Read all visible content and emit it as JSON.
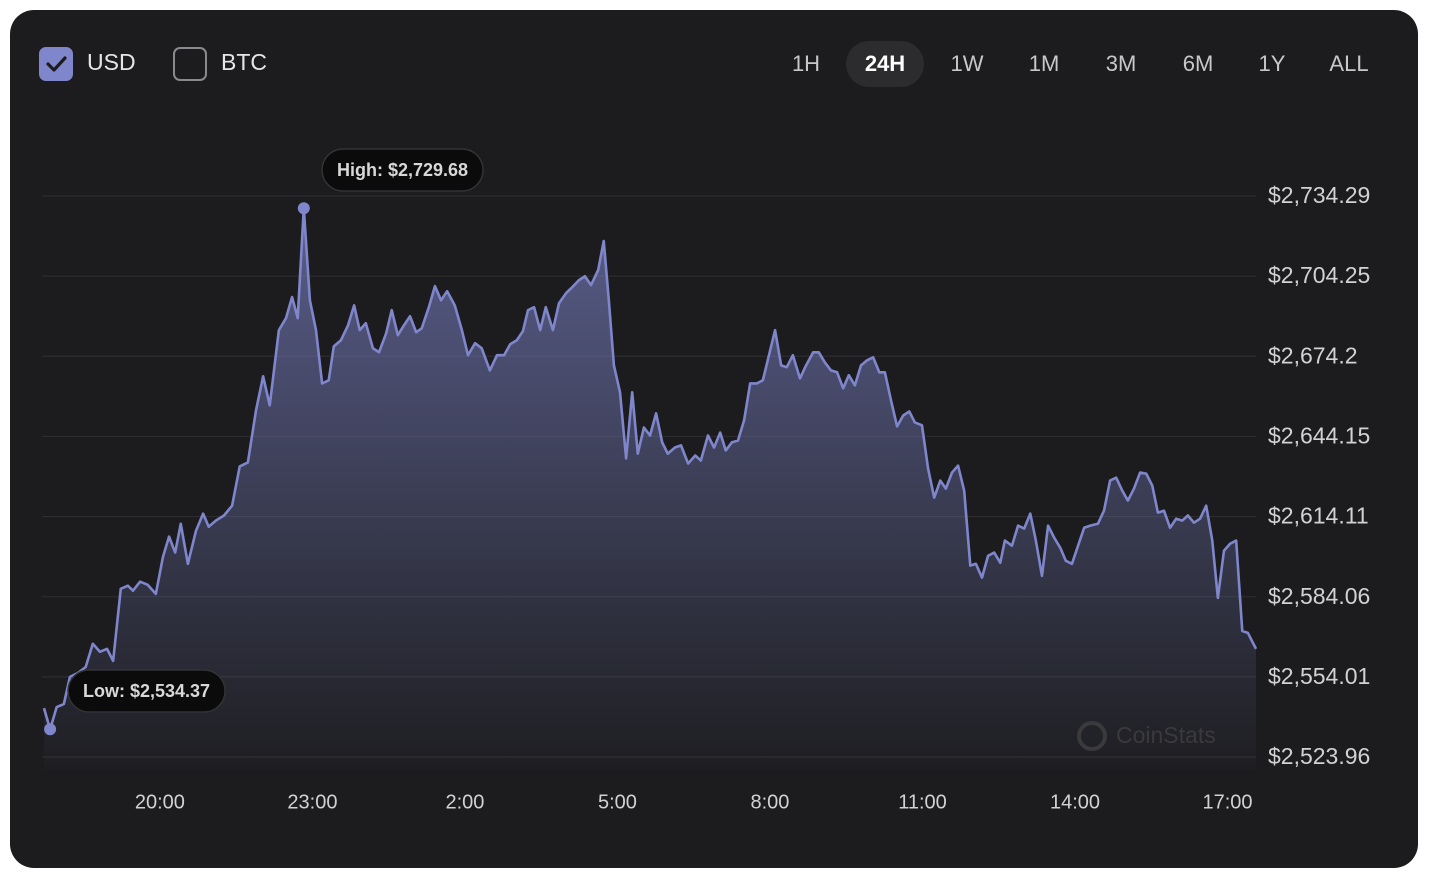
{
  "controls": {
    "currency_toggles": [
      {
        "label": "USD",
        "checked": true
      },
      {
        "label": "BTC",
        "checked": false
      }
    ],
    "ranges": [
      {
        "label": "1H",
        "active": false
      },
      {
        "label": "24H",
        "active": true
      },
      {
        "label": "1W",
        "active": false
      },
      {
        "label": "1M",
        "active": false
      },
      {
        "label": "3M",
        "active": false
      },
      {
        "label": "6M",
        "active": false
      },
      {
        "label": "1Y",
        "active": false
      },
      {
        "label": "ALL",
        "active": false
      }
    ]
  },
  "watermark": "CoinStats",
  "chart_data": {
    "type": "area",
    "color": "#7f86cc",
    "grid": true,
    "annotations": {
      "high": "High: $2,729.68",
      "low": "Low: $2,534.37"
    },
    "xlim": [
      17.72,
      41.56
    ],
    "xticks": [
      {
        "value": 20,
        "label": "20:00"
      },
      {
        "value": 23,
        "label": "23:00"
      },
      {
        "value": 26,
        "label": "2:00"
      },
      {
        "value": 29,
        "label": "5:00"
      },
      {
        "value": 32,
        "label": "8:00"
      },
      {
        "value": 35,
        "label": "11:00"
      },
      {
        "value": 38,
        "label": "14:00"
      },
      {
        "value": 41,
        "label": "17:00"
      }
    ],
    "ylim": [
      2523.96,
      2734.29
    ],
    "yticks": [
      {
        "value": 2523.96,
        "label": "$2,523.96"
      },
      {
        "value": 2554.01,
        "label": "$2,554.01"
      },
      {
        "value": 2584.06,
        "label": "$2,584.06"
      },
      {
        "value": 2614.11,
        "label": "$2,614.11"
      },
      {
        "value": 2644.15,
        "label": "$2,644.15"
      },
      {
        "value": 2674.2,
        "label": "$2,674.2"
      },
      {
        "value": 2704.25,
        "label": "$2,704.25"
      },
      {
        "value": 2734.29,
        "label": "$2,734.29"
      }
    ],
    "x": [
      17.72,
      17.84,
      17.97,
      18.11,
      18.23,
      18.39,
      18.54,
      18.68,
      18.82,
      18.96,
      19.08,
      19.23,
      19.37,
      19.47,
      19.61,
      19.76,
      19.92,
      20.06,
      20.18,
      20.3,
      20.41,
      20.55,
      20.71,
      20.85,
      20.96,
      21.1,
      21.26,
      21.42,
      21.57,
      21.73,
      21.89,
      22.03,
      22.16,
      22.34,
      22.48,
      22.6,
      22.71,
      22.83,
      22.95,
      23.07,
      23.19,
      23.32,
      23.42,
      23.56,
      23.7,
      23.82,
      23.93,
      24.05,
      24.19,
      24.31,
      24.45,
      24.56,
      24.68,
      24.8,
      24.92,
      25.04,
      25.15,
      25.29,
      25.41,
      25.53,
      25.65,
      25.8,
      25.94,
      26.06,
      26.2,
      26.33,
      26.49,
      26.63,
      26.77,
      26.89,
      27.02,
      27.14,
      27.24,
      27.36,
      27.48,
      27.59,
      27.73,
      27.85,
      27.99,
      28.11,
      28.24,
      28.36,
      28.48,
      28.62,
      28.73,
      28.83,
      28.93,
      29.05,
      29.17,
      29.29,
      29.4,
      29.52,
      29.64,
      29.76,
      29.88,
      29.99,
      30.13,
      30.25,
      30.39,
      30.53,
      30.64,
      30.78,
      30.9,
      31.02,
      31.13,
      31.25,
      31.37,
      31.49,
      31.61,
      31.74,
      31.86,
      31.98,
      32.1,
      32.22,
      32.33,
      32.45,
      32.59,
      32.71,
      32.85,
      32.96,
      33.08,
      33.2,
      33.32,
      33.44,
      33.55,
      33.67,
      33.79,
      33.91,
      34.03,
      34.15,
      34.26,
      34.38,
      34.5,
      34.62,
      34.74,
      34.85,
      34.99,
      35.11,
      35.23,
      35.35,
      35.46,
      35.58,
      35.7,
      35.82,
      35.94,
      36.05,
      36.17,
      36.29,
      36.41,
      36.53,
      36.62,
      36.76,
      36.88,
      37.0,
      37.12,
      37.23,
      37.35,
      37.47,
      37.59,
      37.71,
      37.82,
      37.94,
      38.06,
      38.18,
      38.3,
      38.45,
      38.57,
      38.69,
      38.81,
      38.93,
      39.04,
      39.16,
      39.28,
      39.4,
      39.52,
      39.63,
      39.75,
      39.87,
      39.99,
      40.11,
      40.22,
      40.34,
      40.46,
      40.58,
      40.7,
      40.81,
      40.93,
      41.05,
      41.17,
      41.29,
      41.4,
      41.56
    ],
    "values": [
      2542.3,
      2534.37,
      2542.7,
      2543.8,
      2554.0,
      2555.5,
      2557.7,
      2566.4,
      2563.4,
      2564.5,
      2560.0,
      2587.0,
      2588.2,
      2586.3,
      2589.7,
      2588.5,
      2585.1,
      2599.0,
      2606.6,
      2600.6,
      2611.4,
      2596.4,
      2608.8,
      2615.2,
      2610.3,
      2612.6,
      2614.5,
      2618.2,
      2632.9,
      2634.4,
      2653.9,
      2666.7,
      2655.8,
      2684.0,
      2688.5,
      2696.4,
      2688.5,
      2729.68,
      2695.2,
      2684.0,
      2664.0,
      2665.2,
      2677.9,
      2680.2,
      2685.8,
      2693.3,
      2684.0,
      2686.6,
      2677.2,
      2675.7,
      2682.8,
      2691.5,
      2682.1,
      2685.8,
      2689.2,
      2683.2,
      2684.7,
      2692.6,
      2700.5,
      2695.2,
      2698.6,
      2693.3,
      2684.0,
      2674.6,
      2679.1,
      2677.2,
      2668.9,
      2674.6,
      2674.6,
      2678.7,
      2680.2,
      2683.6,
      2691.5,
      2692.6,
      2684.0,
      2692.6,
      2684.0,
      2694.1,
      2697.9,
      2700.1,
      2702.7,
      2704.2,
      2700.9,
      2706.5,
      2717.4,
      2695.2,
      2670.8,
      2660.7,
      2635.9,
      2660.7,
      2637.7,
      2647.5,
      2644.5,
      2652.8,
      2641.9,
      2637.7,
      2640.0,
      2640.8,
      2634.0,
      2637.0,
      2635.1,
      2644.5,
      2640.0,
      2645.6,
      2638.9,
      2641.9,
      2642.6,
      2650.1,
      2664.0,
      2664.0,
      2665.2,
      2674.6,
      2684.0,
      2670.8,
      2670.1,
      2674.6,
      2665.9,
      2670.8,
      2675.7,
      2675.7,
      2671.9,
      2668.9,
      2668.2,
      2662.2,
      2667.1,
      2663.3,
      2670.8,
      2672.7,
      2673.8,
      2668.2,
      2668.2,
      2657.7,
      2647.9,
      2652.0,
      2653.5,
      2649.4,
      2648.3,
      2632.1,
      2621.2,
      2627.6,
      2624.6,
      2630.6,
      2633.2,
      2623.8,
      2595.7,
      2596.4,
      2591.2,
      2599.4,
      2600.6,
      2596.8,
      2605.1,
      2603.2,
      2610.7,
      2609.6,
      2615.2,
      2605.1,
      2591.9,
      2610.7,
      2606.2,
      2602.4,
      2597.5,
      2596.4,
      2603.2,
      2609.9,
      2610.7,
      2611.4,
      2616.3,
      2627.6,
      2628.7,
      2623.8,
      2620.1,
      2624.6,
      2630.6,
      2630.2,
      2625.7,
      2615.6,
      2616.3,
      2609.9,
      2613.3,
      2612.6,
      2614.5,
      2611.8,
      2613.3,
      2618.2,
      2605.1,
      2583.6,
      2601.3,
      2603.9,
      2605.1,
      2571.2,
      2570.5,
      2564.5
    ]
  }
}
